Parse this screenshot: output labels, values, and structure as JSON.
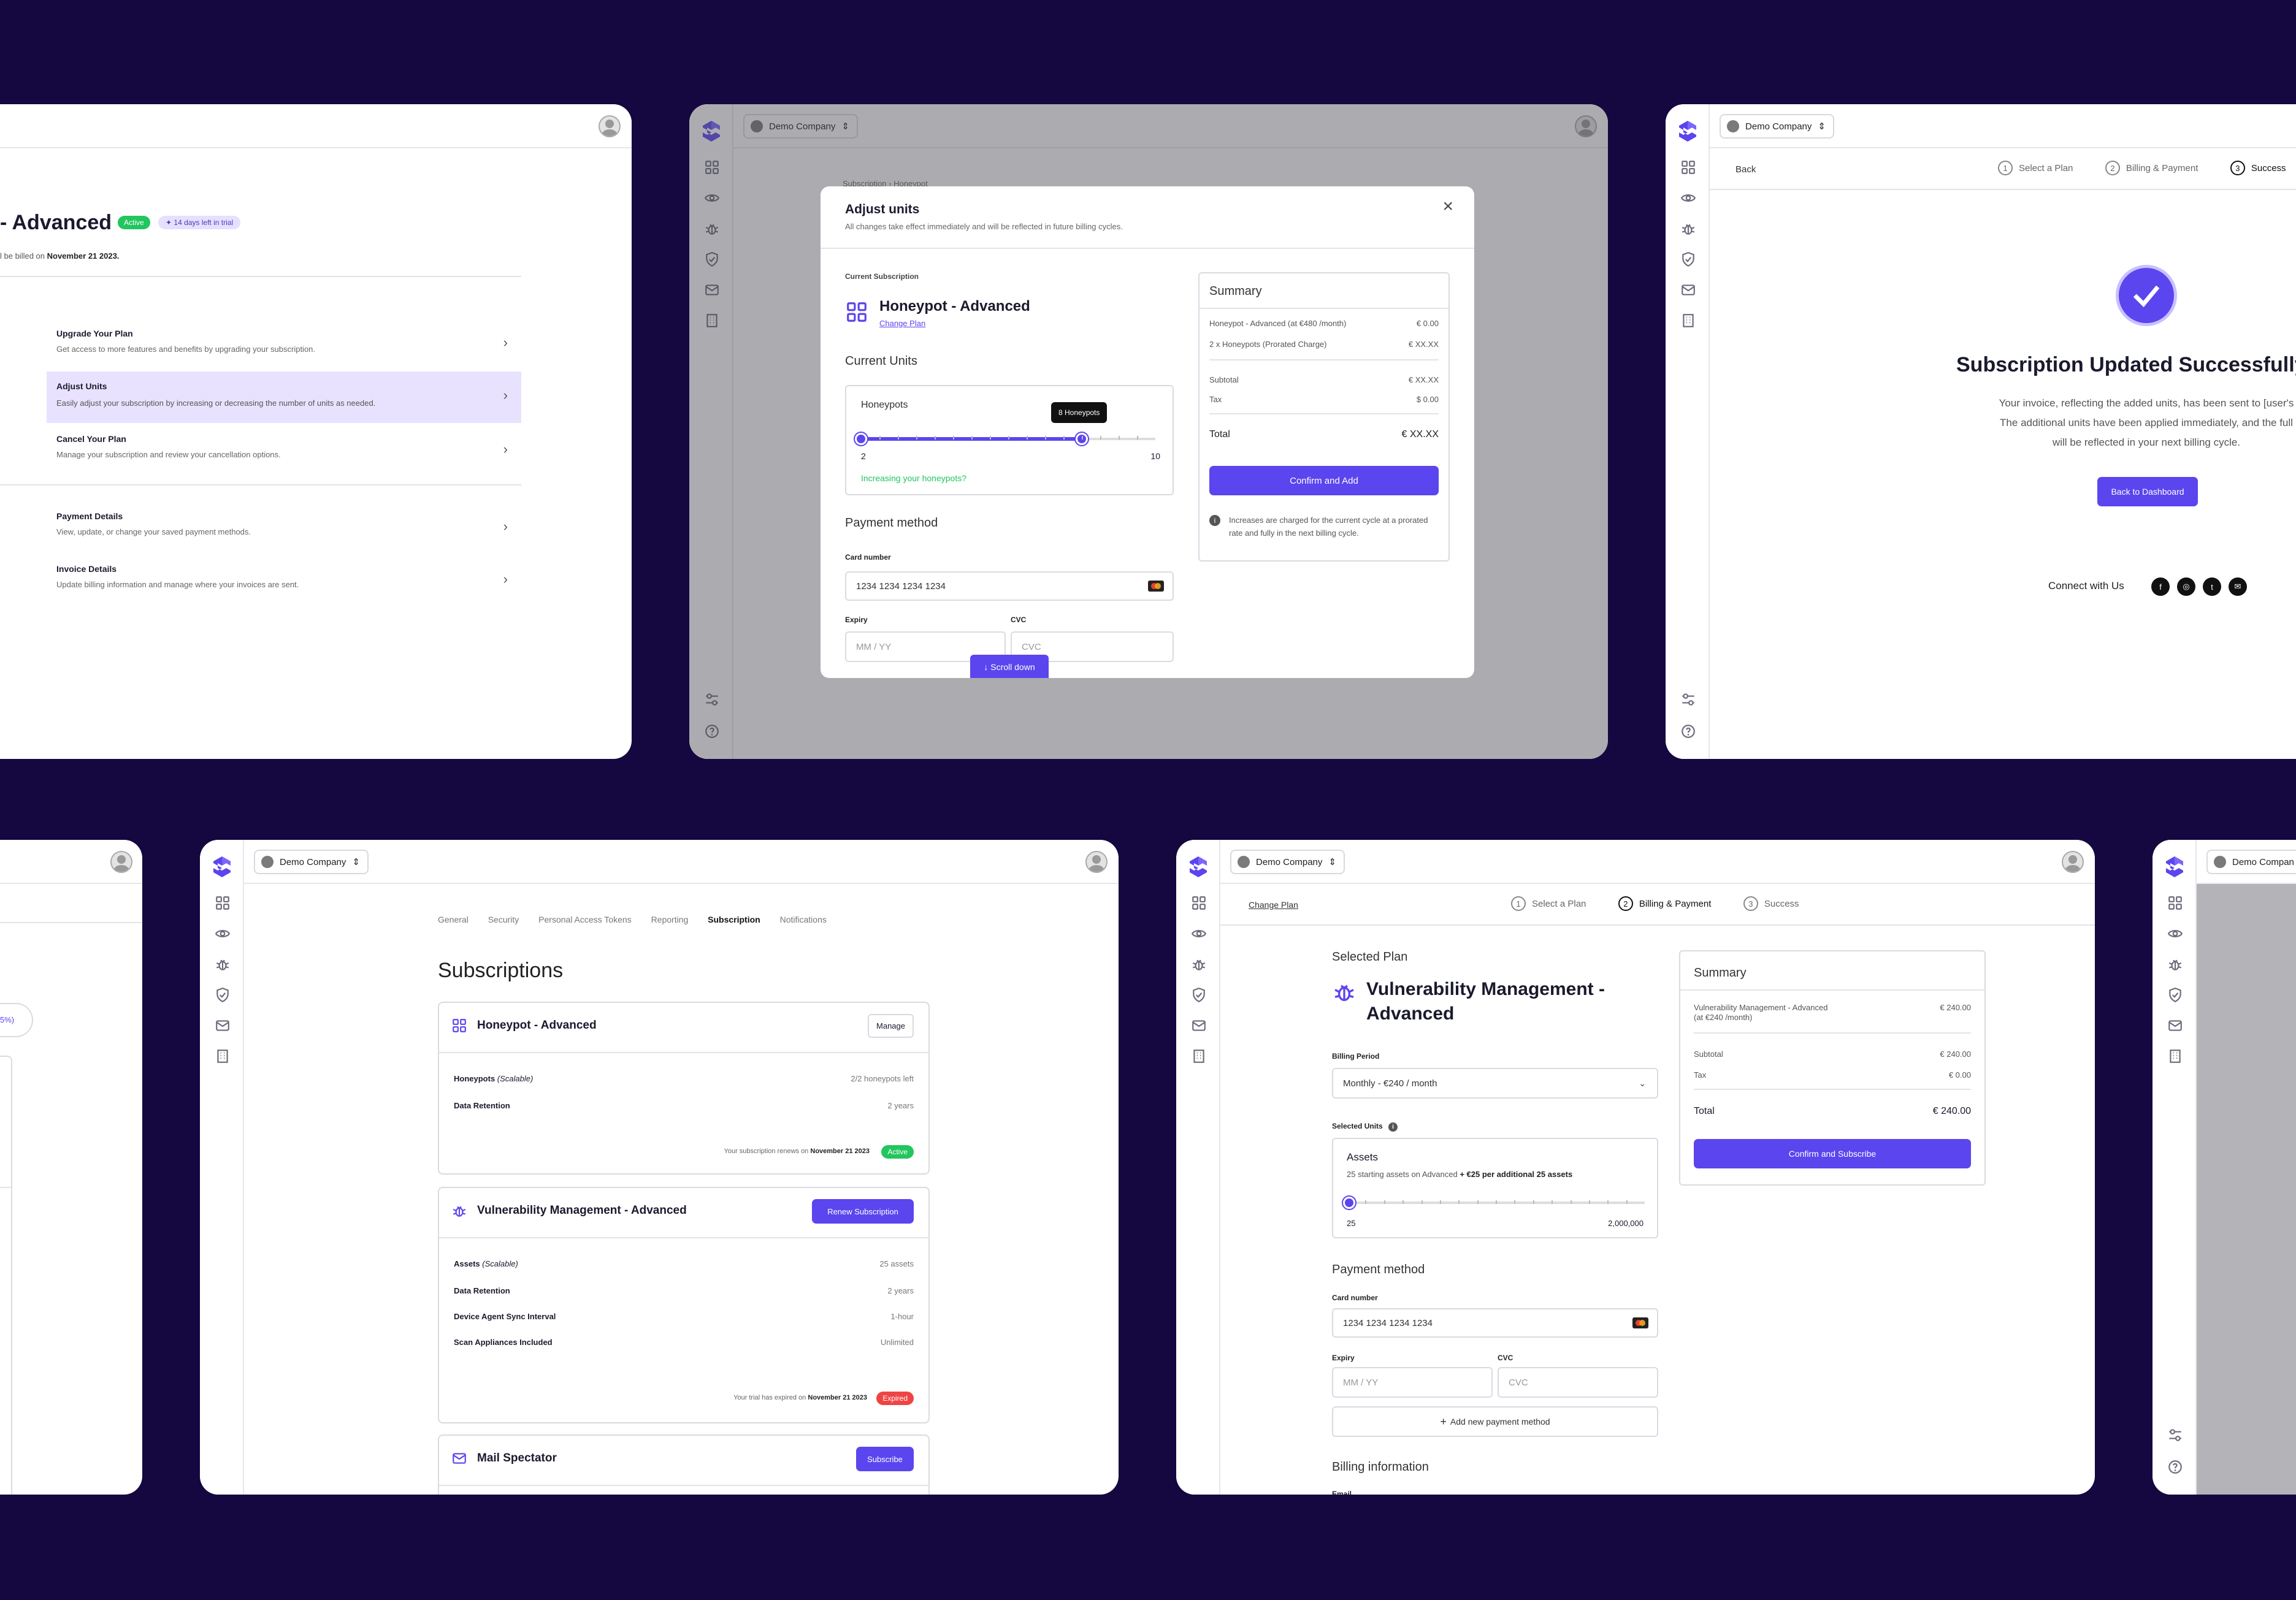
{
  "common": {
    "company": "Demo Company"
  },
  "panel1": {
    "title": "- Advanced",
    "status": "Active",
    "trial": "14 days left in trial",
    "billing_prefix": "l be billed on",
    "billing_date": "November 21 2023.",
    "menu": [
      {
        "title": "Upgrade Your Plan",
        "desc": "Get access to more features and benefits by upgrading your subscription."
      },
      {
        "title": "Adjust Units",
        "desc": "Easily adjust your subscription by increasing or decreasing the number of units as needed."
      },
      {
        "title": "Cancel Your Plan",
        "desc": "Manage your subscription and review your cancellation options."
      },
      {
        "title": "Payment Details",
        "desc": "View, update, or change your saved payment methods."
      },
      {
        "title": "Invoice Details",
        "desc": "Update billing information and manage where your invoices are sent."
      }
    ]
  },
  "panel2": {
    "bg_crumbs": [
      "Subscription",
      "Honeypot"
    ],
    "modal_title": "Adjust units",
    "modal_subtitle": "All changes take effect immediately and will be reflected in future billing cycles.",
    "current_sub_label": "Current Subscription",
    "plan": "Honeypot - Advanced",
    "change_plan": "Change Plan",
    "units_heading": "Current Units",
    "units_name": "Honeypots",
    "tooltip": "8 Honeypots",
    "min": "2",
    "max": "10",
    "slider_min": 2,
    "slider_max": 10,
    "slider_value": 8,
    "hint": "Increasing your honeypots?",
    "payment_heading": "Payment method",
    "card_label": "Card number",
    "card_value": "1234 1234 1234 1234",
    "expiry_label": "Expiry",
    "expiry_placeholder": "MM / YY",
    "cvc_label": "CVC",
    "cvc_placeholder": "CVC",
    "scroll_btn": "Scroll down",
    "summary": {
      "title": "Summary",
      "rows": [
        {
          "label": "Honeypot - Advanced (at €480 /month)",
          "value": "€ 0.00"
        },
        {
          "label": "2 x Honeypots (Prorated Charge)",
          "value": "€ XX.XX"
        }
      ],
      "subtotal_label": "Subtotal",
      "subtotal": "€ XX.XX",
      "tax_label": "Tax",
      "tax": "$ 0.00",
      "total_label": "Total",
      "total": "€ XX.XX",
      "confirm": "Confirm and Add",
      "note": "Increases are charged for the current cycle at a prorated rate and fully in the next billing cycle."
    }
  },
  "panel3": {
    "back": "Back",
    "steps": [
      "Select a Plan",
      "Billing & Payment",
      "Success"
    ],
    "step_nums": [
      "1",
      "2",
      "3"
    ],
    "title": "Subscription Updated Successfully",
    "body": [
      "Your invoice, reflecting the added units, has been sent to [user's",
      "The additional units have been applied immediately, and the full",
      "will be reflected in your next billing cycle."
    ],
    "dashboard_btn": "Back to Dashboard",
    "connect": "Connect with Us"
  },
  "panel4": {
    "badge": "5%)"
  },
  "panel5": {
    "tabs": [
      "General",
      "Security",
      "Personal Access Tokens",
      "Reporting",
      "Subscription",
      "Notifications"
    ],
    "title": "Subscriptions",
    "cards": [
      {
        "name": "Honeypot - Advanced",
        "action": "Manage",
        "rows": [
          {
            "label": "Honeypots",
            "note": "(Scalable)",
            "value": "2/2 honeypots left"
          },
          {
            "label": "Data Retention",
            "note": "",
            "value": "2 years"
          }
        ],
        "footer": "Your subscription renews on",
        "footer_date": "November 21 2023",
        "status": "Active"
      },
      {
        "name": "Vulnerability Management - Advanced",
        "action": "Renew Subscription",
        "rows": [
          {
            "label": "Assets",
            "note": "(Scalable)",
            "value": "25 assets"
          },
          {
            "label": "Data Retention",
            "note": "",
            "value": "2 years"
          },
          {
            "label": "Device Agent Sync Interval",
            "note": "",
            "value": "1-hour"
          },
          {
            "label": "Scan Appliances Included",
            "note": "",
            "value": "Unlimited"
          }
        ],
        "footer": "Your trial has expired on",
        "footer_date": "November 21 2023",
        "status": "Expired"
      },
      {
        "name": "Mail Spectator",
        "action": "Subscribe"
      }
    ]
  },
  "panel6": {
    "change_plan": "Change Plan",
    "steps": [
      "Select a Plan",
      "Billing & Payment",
      "Success"
    ],
    "step_nums": [
      "1",
      "2",
      "3"
    ],
    "selected_label": "Selected Plan",
    "plan_line1": "Vulnerability Management -",
    "plan_line2": "Advanced",
    "billing_period_label": "Billing Period",
    "billing_period": "Monthly - €240 / month",
    "selected_units_label": "Selected Units",
    "assets_title": "Assets",
    "assets_desc_1": "25 starting assets on Advanced",
    "assets_desc_2": "+ €25 per additional 25 assets",
    "min": "25",
    "max": "2,000,000",
    "slider_value": 25,
    "payment_heading": "Payment method",
    "card_label": "Card number",
    "card_value": "1234 1234 1234 1234",
    "expiry_label": "Expiry",
    "expiry_placeholder": "MM / YY",
    "cvc_label": "CVC",
    "cvc_placeholder": "CVC",
    "add_payment": "Add new payment method",
    "billing_info": "Billing information",
    "email_label": "Email",
    "summary": {
      "title": "Summary",
      "item_1": "Vulnerability Management - Advanced",
      "item_2": "(at €240 /month)",
      "item_value": "€ 240.00",
      "subtotal_label": "Subtotal",
      "subtotal": "€ 240.00",
      "tax_label": "Tax",
      "tax": "€ 0.00",
      "total_label": "Total",
      "total": "€ 240.00",
      "confirm": "Confirm and Subscribe"
    }
  },
  "panel7": {
    "company": "Demo Compan"
  },
  "colors": {
    "background": "#150740",
    "accent": "#5b45ee",
    "active": "#22c55e",
    "expired": "#ef4444",
    "hint": "#22c55e"
  }
}
